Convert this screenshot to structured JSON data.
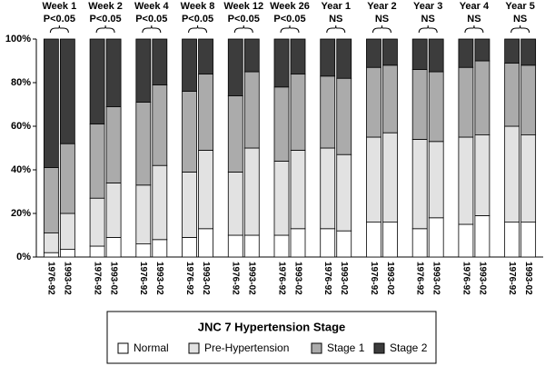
{
  "chart_data": {
    "type": "grouped-stacked-bar",
    "legend_title": "JNC 7 Hypertension Stage",
    "categories": [
      "Week 1",
      "Week 2",
      "Week 4",
      "Week 8",
      "Week 12",
      "Week 26",
      "Year 1",
      "Year 2",
      "Year 3",
      "Year 4",
      "Year 5"
    ],
    "group_labels": [
      "P<0.05",
      "P<0.05",
      "P<0.05",
      "P<0.05",
      "P<0.05",
      "P<0.05",
      "NS",
      "NS",
      "NS",
      "NS",
      "NS"
    ],
    "bars": [
      "1976-92",
      "1993-02"
    ],
    "ylim": [
      0,
      100
    ],
    "yticks": [
      {
        "value": 0,
        "label": "0%"
      },
      {
        "value": 20,
        "label": "20%"
      },
      {
        "value": 40,
        "label": "40%"
      },
      {
        "value": 60,
        "label": "60%"
      },
      {
        "value": 80,
        "label": "80%"
      },
      {
        "value": 100,
        "label": "100%"
      }
    ],
    "series": [
      {
        "name": "Normal",
        "color": "#ffffff",
        "values": [
          [
            2,
            3.5
          ],
          [
            5,
            9
          ],
          [
            6,
            8
          ],
          [
            9,
            13
          ],
          [
            10,
            10
          ],
          [
            10,
            13
          ],
          [
            13,
            12
          ],
          [
            16,
            16
          ],
          [
            13,
            18
          ],
          [
            15,
            19
          ],
          [
            16,
            16
          ]
        ]
      },
      {
        "name": "Pre-Hypertension",
        "color": "#e2e2e2",
        "values": [
          [
            9,
            16.5
          ],
          [
            22,
            25
          ],
          [
            27,
            34
          ],
          [
            30,
            36
          ],
          [
            29,
            40
          ],
          [
            34,
            36
          ],
          [
            37,
            35
          ],
          [
            39,
            41
          ],
          [
            41,
            35
          ],
          [
            40,
            37
          ],
          [
            44,
            40
          ]
        ]
      },
      {
        "name": "Stage 1",
        "color": "#ababab",
        "values": [
          [
            30,
            32
          ],
          [
            34,
            35
          ],
          [
            38,
            37
          ],
          [
            37,
            35
          ],
          [
            35,
            35
          ],
          [
            34,
            35
          ],
          [
            33,
            35
          ],
          [
            32,
            31
          ],
          [
            32,
            32
          ],
          [
            32,
            34
          ],
          [
            29,
            32
          ]
        ]
      },
      {
        "name": "Stage 2",
        "color": "#3c3c3c",
        "values": [
          [
            59,
            48
          ],
          [
            39,
            31
          ],
          [
            29,
            21
          ],
          [
            24,
            16
          ],
          [
            26,
            15
          ],
          [
            22,
            16
          ],
          [
            17,
            18
          ],
          [
            13,
            12
          ],
          [
            14,
            15
          ],
          [
            13,
            10
          ],
          [
            11,
            12
          ]
        ]
      }
    ]
  }
}
